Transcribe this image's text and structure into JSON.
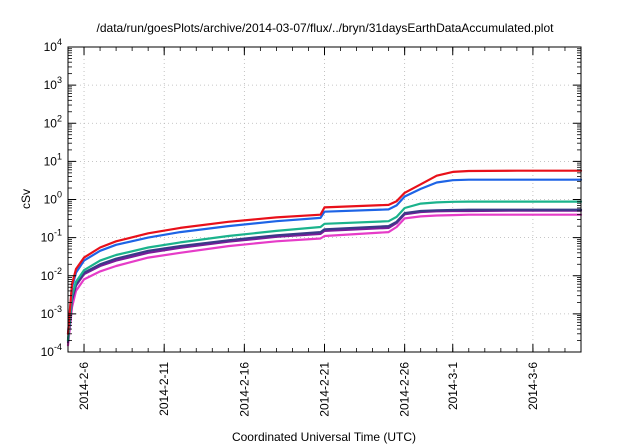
{
  "chart_data": {
    "type": "line",
    "title": "/data/run/goesPlots/archive/2014-03-07/flux/../bryn/31daysEarthDataAccumulated.plot",
    "xlabel": "Coordinated Universal Time (UTC)",
    "ylabel": "cSv",
    "y_scale": "log",
    "ylim": [
      0.0001,
      10000
    ],
    "xlim": [
      "2014-02-05",
      "2014-03-09"
    ],
    "grid": true,
    "legend": "none",
    "x_ticks": [
      {
        "date": "2014-02-06",
        "label": "2014-2-6"
      },
      {
        "date": "2014-02-11",
        "label": "2014-2-11"
      },
      {
        "date": "2014-02-16",
        "label": "2014-2-16"
      },
      {
        "date": "2014-02-21",
        "label": "2014-2-21"
      },
      {
        "date": "2014-02-26",
        "label": "2014-2-26"
      },
      {
        "date": "2014-03-01",
        "label": "2014-3-1"
      },
      {
        "date": "2014-03-06",
        "label": "2014-3-6"
      }
    ],
    "y_ticks": [
      {
        "value": 0.0001,
        "base": "10",
        "exp": "-4"
      },
      {
        "value": 0.001,
        "base": "10",
        "exp": "-3"
      },
      {
        "value": 0.01,
        "base": "10",
        "exp": "-2"
      },
      {
        "value": 0.1,
        "base": "10",
        "exp": "-1"
      },
      {
        "value": 1,
        "base": "10",
        "exp": "0"
      },
      {
        "value": 10,
        "base": "10",
        "exp": "1"
      },
      {
        "value": 100,
        "base": "10",
        "exp": "2"
      },
      {
        "value": 1000,
        "base": "10",
        "exp": "3"
      },
      {
        "value": 10000,
        "base": "10",
        "exp": "4"
      }
    ],
    "x": [
      "2014-02-05",
      "2014-02-05T06",
      "2014-02-05T12",
      "2014-02-06",
      "2014-02-07",
      "2014-02-08",
      "2014-02-10",
      "2014-02-12",
      "2014-02-15",
      "2014-02-18",
      "2014-02-20T18",
      "2014-02-21",
      "2014-02-25",
      "2014-02-25T12",
      "2014-02-26",
      "2014-02-27",
      "2014-02-28",
      "2014-03-01",
      "2014-03-02",
      "2014-03-05",
      "2014-03-09"
    ],
    "series": [
      {
        "color": "#e8101a",
        "values": [
          0.0003,
          0.006,
          0.015,
          0.03,
          0.055,
          0.08,
          0.13,
          0.18,
          0.26,
          0.34,
          0.4,
          0.62,
          0.72,
          0.9,
          1.5,
          2.5,
          4.2,
          5.3,
          5.6,
          5.7,
          5.7
        ]
      },
      {
        "color": "#1e64e6",
        "values": [
          0.0003,
          0.005,
          0.012,
          0.025,
          0.045,
          0.065,
          0.1,
          0.14,
          0.2,
          0.27,
          0.33,
          0.48,
          0.55,
          0.7,
          1.2,
          1.9,
          2.8,
          3.2,
          3.3,
          3.3,
          3.3
        ]
      },
      {
        "color": "#1bb38c",
        "values": [
          0.0002,
          0.003,
          0.007,
          0.014,
          0.025,
          0.035,
          0.055,
          0.075,
          0.11,
          0.15,
          0.19,
          0.23,
          0.27,
          0.35,
          0.6,
          0.78,
          0.84,
          0.87,
          0.88,
          0.88,
          0.88
        ]
      },
      {
        "color": "#3a3a88",
        "values": [
          0.0002,
          0.0025,
          0.006,
          0.012,
          0.02,
          0.028,
          0.045,
          0.06,
          0.085,
          0.115,
          0.14,
          0.165,
          0.2,
          0.26,
          0.44,
          0.5,
          0.52,
          0.53,
          0.54,
          0.54,
          0.54
        ]
      },
      {
        "color": "#7c1a9a",
        "values": [
          0.00018,
          0.0022,
          0.0055,
          0.011,
          0.018,
          0.025,
          0.04,
          0.054,
          0.078,
          0.105,
          0.125,
          0.15,
          0.18,
          0.24,
          0.41,
          0.47,
          0.49,
          0.5,
          0.5,
          0.51,
          0.51
        ]
      },
      {
        "color": "#e63cc8",
        "values": [
          0.00015,
          0.0015,
          0.004,
          0.008,
          0.013,
          0.018,
          0.03,
          0.04,
          0.06,
          0.08,
          0.095,
          0.11,
          0.14,
          0.19,
          0.32,
          0.36,
          0.38,
          0.39,
          0.4,
          0.4,
          0.4
        ]
      }
    ]
  }
}
